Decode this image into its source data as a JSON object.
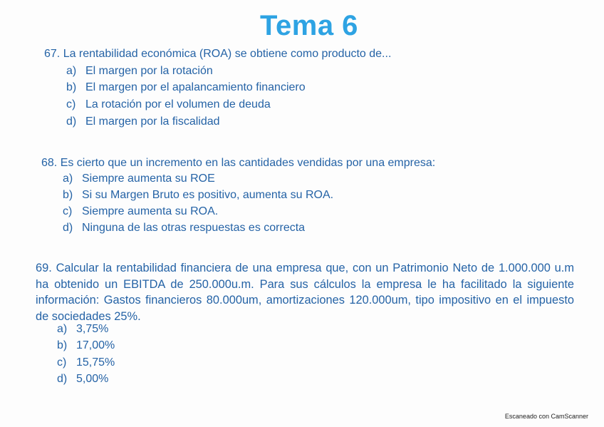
{
  "title": "Tema 6",
  "questions": [
    {
      "text": "67. La rentabilidad económica (ROA) se obtiene como producto de...",
      "options": [
        {
          "letter": "a)",
          "text": "El margen por la rotación"
        },
        {
          "letter": "b)",
          "text": "El margen por el apalancamiento financiero"
        },
        {
          "letter": "c)",
          "text": "La rotación por el volumen de deuda"
        },
        {
          "letter": "d)",
          "text": "El margen por la fiscalidad"
        }
      ]
    },
    {
      "text": "68. Es cierto que un incremento en las cantidades vendidas por una empresa:",
      "options": [
        {
          "letter": "a)",
          "text": "Siempre aumenta su ROE"
        },
        {
          "letter": "b)",
          "text": "Si su Margen Bruto es positivo, aumenta su ROA."
        },
        {
          "letter": "c)",
          "text": "Siempre aumenta su ROA."
        },
        {
          "letter": "d)",
          "text": "Ninguna de las otras respuestas es correcta"
        }
      ]
    },
    {
      "text": "69. Calcular la rentabilidad financiera de una empresa que, con un Patrimonio Neto de 1.000.000 u.m ha obtenido un EBITDA de 250.000u.m. Para sus cálculos la empresa le ha facilitado la siguiente información: Gastos financieros 80.000um, amortizaciones 120.000um, tipo impositivo en el impuesto de sociedades 25%.",
      "options": [
        {
          "letter": "a)",
          "text": "3,75%"
        },
        {
          "letter": "b)",
          "text": "17,00%"
        },
        {
          "letter": "c)",
          "text": "15,75%"
        },
        {
          "letter": "d)",
          "text": "5,00%"
        }
      ]
    }
  ],
  "footer": "Escaneado con CamScanner",
  "colors": {
    "title": "#2ea3e3",
    "text": "#2563a6"
  }
}
